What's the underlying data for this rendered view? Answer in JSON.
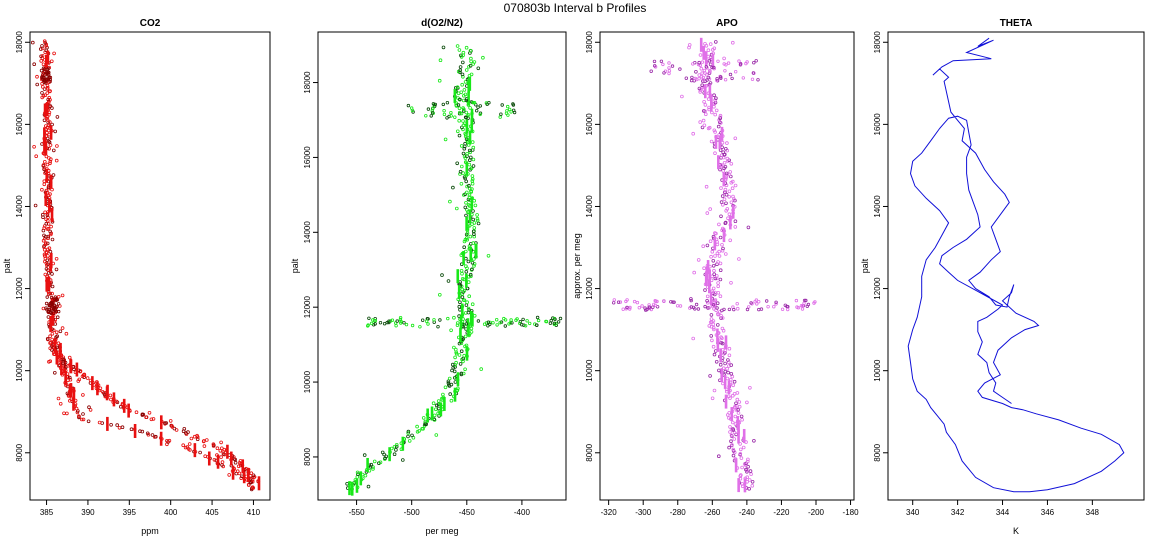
{
  "figure": {
    "title": "070803b   Interval b Profiles"
  },
  "colors": {
    "co2": "#e81010",
    "co2_dark": "#8b0000",
    "o2n2": "#18e818",
    "o2n2_dark": "#0a4a0a",
    "apo": "#e070e8",
    "apo_dark": "#9a2aa8",
    "theta": "#1010d8",
    "axis": "#000000"
  },
  "chart_data": [
    {
      "id": "co2",
      "type": "scatter",
      "title": "CO2",
      "xlabel": "ppm",
      "ylabel": "palt",
      "xlim": [
        383,
        412
      ],
      "ylim": [
        6850,
        18250
      ],
      "xticks": [
        385,
        390,
        395,
        400,
        405,
        410
      ],
      "yticks": [
        8000,
        10000,
        12000,
        14000,
        16000,
        18000
      ],
      "profile": [
        [
          384.8,
          18050
        ],
        [
          384.8,
          17500
        ],
        [
          384.9,
          17000
        ],
        [
          385.0,
          16500
        ],
        [
          385.2,
          16000
        ],
        [
          385.2,
          15500
        ],
        [
          385.0,
          15000
        ],
        [
          385.2,
          14500
        ],
        [
          385.3,
          14000
        ],
        [
          385.2,
          13500
        ],
        [
          385.1,
          13000
        ],
        [
          385.2,
          12500
        ],
        [
          385.5,
          12000
        ],
        [
          385.6,
          11600
        ],
        [
          385.6,
          11300
        ],
        [
          385.7,
          11000
        ],
        [
          385.9,
          10800
        ],
        [
          386.3,
          10500
        ],
        [
          386.7,
          10200
        ],
        [
          387.2,
          9900
        ],
        [
          387.7,
          9600
        ],
        [
          388.2,
          9300
        ],
        [
          388.7,
          9000
        ],
        [
          389.3,
          8850
        ],
        [
          390.5,
          8750
        ],
        [
          392.5,
          8700
        ],
        [
          395.0,
          8600
        ],
        [
          398.0,
          8400
        ],
        [
          401.0,
          8200
        ],
        [
          404.0,
          7950
        ],
        [
          406.5,
          7700
        ],
        [
          408.5,
          7450
        ],
        [
          409.8,
          7250
        ],
        [
          410.1,
          7100
        ]
      ],
      "second_profile": [
        [
          385.5,
          10800
        ],
        [
          386.0,
          10500
        ],
        [
          386.6,
          10300
        ],
        [
          387.4,
          10150
        ],
        [
          388.5,
          10000
        ],
        [
          389.6,
          9900
        ],
        [
          390.5,
          9750
        ],
        [
          391.5,
          9550
        ],
        [
          393.0,
          9300
        ],
        [
          395.0,
          9050
        ],
        [
          397.5,
          8850
        ],
        [
          400.0,
          8650
        ],
        [
          403.0,
          8400
        ],
        [
          406.0,
          8100
        ],
        [
          408.0,
          7800
        ],
        [
          409.5,
          7500
        ],
        [
          410.3,
          7250
        ]
      ]
    },
    {
      "id": "o2n2",
      "type": "scatter",
      "title": "d(O2/N2)",
      "xlabel": "per meg",
      "ylabel": "palt",
      "xlim": [
        -585,
        -360
      ],
      "ylim": [
        6850,
        19350
      ],
      "xticks": [
        -550,
        -500,
        -450,
        -400
      ],
      "yticks": [
        8000,
        10000,
        12000,
        14000,
        16000,
        18000
      ],
      "profile": [
        [
          -452,
          19000
        ],
        [
          -450,
          18500
        ],
        [
          -452,
          18000
        ],
        [
          -455,
          17500
        ],
        [
          -452,
          17200
        ],
        [
          -450,
          16800
        ],
        [
          -450,
          16300
        ],
        [
          -450,
          15800
        ],
        [
          -450,
          15300
        ],
        [
          -448,
          14800
        ],
        [
          -446,
          14300
        ],
        [
          -446,
          13800
        ],
        [
          -448,
          13300
        ],
        [
          -452,
          12800
        ],
        [
          -452,
          12300
        ],
        [
          -450,
          11900
        ],
        [
          -452,
          11500
        ],
        [
          -452,
          11100
        ],
        [
          -455,
          10700
        ],
        [
          -458,
          10300
        ],
        [
          -462,
          9900
        ],
        [
          -470,
          9500
        ],
        [
          -478,
          9200
        ],
        [
          -488,
          8900
        ],
        [
          -500,
          8600
        ],
        [
          -512,
          8300
        ],
        [
          -525,
          8000
        ],
        [
          -538,
          7700
        ],
        [
          -550,
          7400
        ],
        [
          -558,
          7100
        ]
      ]
    },
    {
      "id": "apo",
      "type": "scatter",
      "title": "APO",
      "xlabel": "",
      "ylabel": "approx. per meg",
      "xlim": [
        -325,
        -178
      ],
      "ylim": [
        6850,
        18250
      ],
      "xticks": [
        -320,
        -300,
        -280,
        -260,
        -240,
        -220,
        -200,
        -180
      ],
      "yticks": [
        8000,
        10000,
        12000,
        14000,
        16000,
        18000
      ],
      "profile": [
        [
          -262,
          18050
        ],
        [
          -264,
          17500
        ],
        [
          -266,
          17200
        ],
        [
          -263,
          16800
        ],
        [
          -260,
          16300
        ],
        [
          -258,
          15800
        ],
        [
          -255,
          15300
        ],
        [
          -252,
          14800
        ],
        [
          -250,
          14300
        ],
        [
          -252,
          13800
        ],
        [
          -255,
          13300
        ],
        [
          -258,
          12800
        ],
        [
          -260,
          12300
        ],
        [
          -260,
          11900
        ],
        [
          -258,
          11500
        ],
        [
          -258,
          11100
        ],
        [
          -256,
          10700
        ],
        [
          -254,
          10300
        ],
        [
          -252,
          9900
        ],
        [
          -250,
          9500
        ],
        [
          -248,
          9100
        ],
        [
          -246,
          8700
        ],
        [
          -245,
          8300
        ],
        [
          -244,
          7900
        ],
        [
          -242,
          7500
        ],
        [
          -240,
          7100
        ]
      ]
    },
    {
      "id": "theta",
      "type": "line",
      "title": "THETA",
      "xlabel": "K",
      "ylabel": "palt",
      "xlim": [
        338.9,
        350.3
      ],
      "ylim": [
        6850,
        18250
      ],
      "xticks": [
        340,
        342,
        344,
        346,
        348
      ],
      "yticks": [
        8000,
        10000,
        12000,
        14000,
        16000,
        18000
      ],
      "path": [
        [
          343.4,
          18100
        ],
        [
          342.9,
          17900
        ],
        [
          343.6,
          18050
        ],
        [
          342.4,
          17750
        ],
        [
          343.5,
          17600
        ],
        [
          341.8,
          17550
        ],
        [
          341.3,
          17400
        ],
        [
          340.9,
          17200
        ],
        [
          341.2,
          17350
        ],
        [
          341.6,
          17150
        ],
        [
          341.4,
          17050
        ],
        [
          341.7,
          16300
        ],
        [
          342.0,
          16100
        ],
        [
          342.3,
          15900
        ],
        [
          342.2,
          15600
        ],
        [
          342.8,
          15300
        ],
        [
          343.2,
          14900
        ],
        [
          343.6,
          14600
        ],
        [
          344.1,
          14300
        ],
        [
          344.3,
          14100
        ],
        [
          343.9,
          13800
        ],
        [
          343.5,
          13500
        ],
        [
          343.7,
          13200
        ],
        [
          343.9,
          12900
        ],
        [
          343.5,
          12700
        ],
        [
          343.0,
          12400
        ],
        [
          342.5,
          12200
        ],
        [
          342.8,
          12000
        ],
        [
          343.4,
          11800
        ],
        [
          343.7,
          11600
        ],
        [
          344.2,
          11550
        ],
        [
          344.3,
          11800
        ],
        [
          344.5,
          12100
        ],
        [
          344.4,
          11900
        ],
        [
          344.0,
          11700
        ],
        [
          344.6,
          11400
        ],
        [
          345.4,
          11200
        ],
        [
          345.6,
          11100
        ],
        [
          345.0,
          11000
        ],
        [
          344.4,
          10800
        ],
        [
          343.8,
          10500
        ],
        [
          343.6,
          10200
        ],
        [
          343.9,
          9900
        ],
        [
          343.2,
          9700
        ],
        [
          342.9,
          9500
        ],
        [
          343.1,
          9350
        ],
        [
          344.0,
          9200
        ],
        [
          344.4,
          9100
        ],
        [
          344.9,
          9050
        ],
        [
          345.5,
          8950
        ],
        [
          346.5,
          8800
        ],
        [
          347.5,
          8600
        ],
        [
          348.4,
          8450
        ],
        [
          349.2,
          8200
        ],
        [
          349.4,
          8000
        ],
        [
          349.0,
          7800
        ],
        [
          348.4,
          7550
        ],
        [
          347.2,
          7250
        ],
        [
          346.0,
          7100
        ],
        [
          345.2,
          7050
        ],
        [
          344.5,
          7050
        ],
        [
          343.6,
          7150
        ],
        [
          342.8,
          7400
        ],
        [
          342.2,
          7800
        ],
        [
          341.9,
          8200
        ],
        [
          341.5,
          8500
        ],
        [
          341.4,
          8700
        ],
        [
          341.1,
          8900
        ],
        [
          340.8,
          9100
        ],
        [
          340.6,
          9300
        ],
        [
          340.2,
          9500
        ],
        [
          340.0,
          9800
        ],
        [
          339.9,
          10200
        ],
        [
          339.8,
          10600
        ],
        [
          340.0,
          11000
        ],
        [
          340.2,
          11300
        ],
        [
          340.4,
          11800
        ],
        [
          340.4,
          12300
        ],
        [
          340.6,
          12700
        ],
        [
          341.0,
          13000
        ],
        [
          341.3,
          13300
        ],
        [
          341.6,
          13600
        ],
        [
          341.2,
          13900
        ],
        [
          340.6,
          14200
        ],
        [
          340.1,
          14500
        ],
        [
          339.9,
          14800
        ],
        [
          340.0,
          15100
        ],
        [
          340.4,
          15300
        ],
        [
          340.8,
          15600
        ],
        [
          341.2,
          15900
        ],
        [
          341.6,
          16150
        ],
        [
          342.0,
          16200
        ],
        [
          342.4,
          16100
        ],
        [
          342.5,
          15800
        ],
        [
          342.6,
          15500
        ],
        [
          342.4,
          15200
        ],
        [
          342.4,
          14800
        ],
        [
          342.5,
          14400
        ],
        [
          342.7,
          14100
        ],
        [
          342.9,
          13800
        ],
        [
          343.0,
          13500
        ],
        [
          342.4,
          13200
        ],
        [
          341.8,
          13000
        ],
        [
          341.3,
          12800
        ],
        [
          341.2,
          12600
        ],
        [
          341.6,
          12400
        ],
        [
          342.0,
          12200
        ],
        [
          343.0,
          11900
        ],
        [
          344.0,
          11600
        ],
        [
          343.8,
          11500
        ],
        [
          343.3,
          11300
        ],
        [
          342.9,
          11200
        ],
        [
          342.9,
          10950
        ],
        [
          343.1,
          10700
        ],
        [
          342.9,
          10400
        ],
        [
          343.3,
          10200
        ],
        [
          343.4,
          9950
        ],
        [
          343.7,
          9700
        ],
        [
          343.6,
          9500
        ],
        [
          344.0,
          9350
        ],
        [
          344.4,
          9200
        ]
      ]
    }
  ]
}
